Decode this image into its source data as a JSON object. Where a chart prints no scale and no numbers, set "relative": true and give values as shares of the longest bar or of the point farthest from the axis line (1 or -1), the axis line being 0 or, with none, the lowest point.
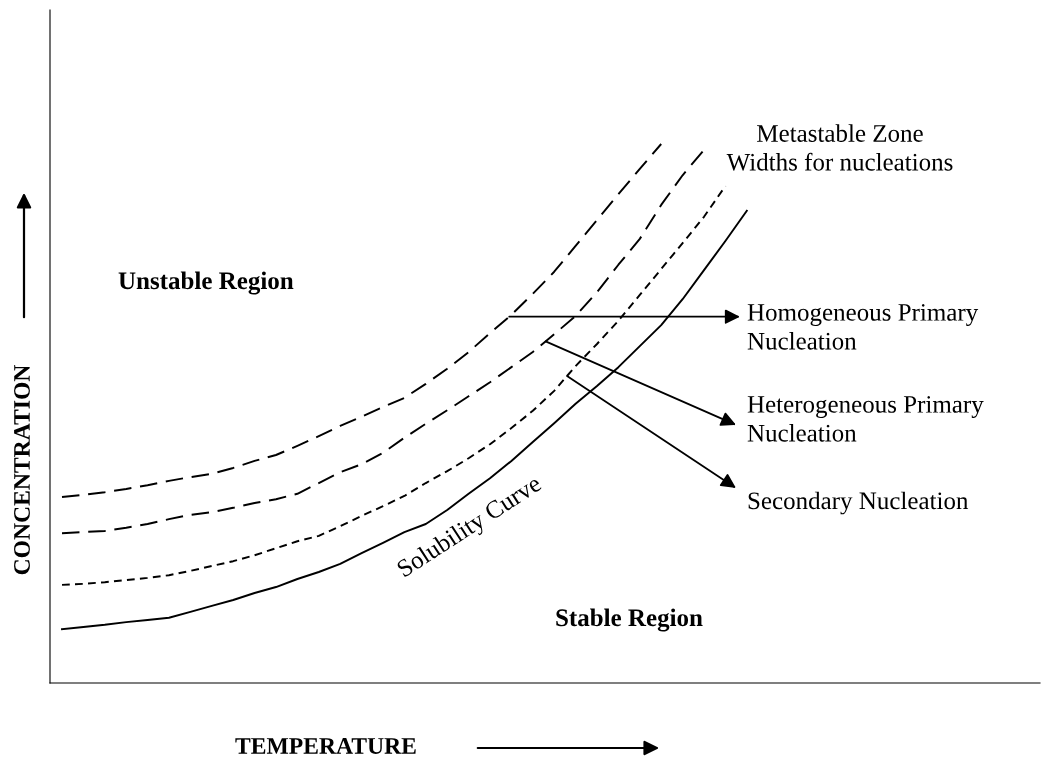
{
  "chart_data": {
    "type": "line",
    "relative": true,
    "xlabel": "TEMPERATURE",
    "ylabel": "CONCENTRATION",
    "categories": [
      null,
      null,
      null,
      null,
      null,
      null,
      null,
      null,
      null,
      null,
      null,
      null,
      null,
      null,
      null,
      null,
      null,
      null,
      null,
      null,
      null,
      null,
      null,
      null,
      null,
      null,
      null,
      null,
      null,
      null,
      null,
      null,
      null
    ],
    "series": [
      {
        "color": "#000000",
        "line_style": "dashed",
        "values": [
          0.345,
          0.349,
          0.354,
          0.36,
          0.367,
          0.375,
          0.382,
          0.388,
          0.399,
          0.412,
          0.423,
          0.44,
          0.458,
          0.477,
          0.494,
          0.512,
          0.529,
          0.555,
          0.583,
          0.614,
          0.649,
          0.683,
          0.722,
          0.763,
          0.811,
          0.859,
          0.907,
          0.954,
          1.0,
          null,
          null,
          null,
          null
        ]
      },
      {
        "color": "#000000",
        "line_style": "dashed",
        "values": [
          0.278,
          0.28,
          0.282,
          0.288,
          0.295,
          0.304,
          0.312,
          0.317,
          0.325,
          0.334,
          0.341,
          0.351,
          0.371,
          0.391,
          0.406,
          0.427,
          0.455,
          0.481,
          0.506,
          0.532,
          0.558,
          0.586,
          0.614,
          0.647,
          0.681,
          0.725,
          0.776,
          0.824,
          0.887,
          0.942,
          0.989,
          null,
          null
        ]
      },
      {
        "color": "#000000",
        "line_style": "dotted",
        "values": [
          0.182,
          0.184,
          0.187,
          0.191,
          0.195,
          0.2,
          0.208,
          0.217,
          0.226,
          0.237,
          0.25,
          0.263,
          0.273,
          0.291,
          0.31,
          0.328,
          0.347,
          0.371,
          0.393,
          0.417,
          0.443,
          0.473,
          0.505,
          0.542,
          0.588,
          0.629,
          0.672,
          0.72,
          0.768,
          0.816,
          0.865,
          0.922,
          null
        ]
      },
      {
        "color": "#000000",
        "line_style": "solid",
        "values": [
          0.1,
          0.104,
          0.108,
          0.113,
          0.117,
          0.121,
          0.132,
          0.143,
          0.154,
          0.167,
          0.178,
          0.193,
          0.206,
          0.221,
          0.241,
          0.26,
          0.28,
          0.295,
          0.321,
          0.351,
          0.38,
          0.412,
          0.447,
          0.482,
          0.518,
          0.551,
          0.586,
          0.625,
          0.664,
          0.712,
          0.766,
          0.82,
          0.876
        ]
      }
    ],
    "annotations": [
      "Unstable Region",
      "Stable Region",
      "Solubility Curve",
      "Metastable Zone\nWidths for nucleations",
      "Homogeneous Primary\nNucleation",
      "Heterogeneous Primary\nNucleation",
      "Secondary Nucleation"
    ],
    "legend": false,
    "grid": false
  }
}
